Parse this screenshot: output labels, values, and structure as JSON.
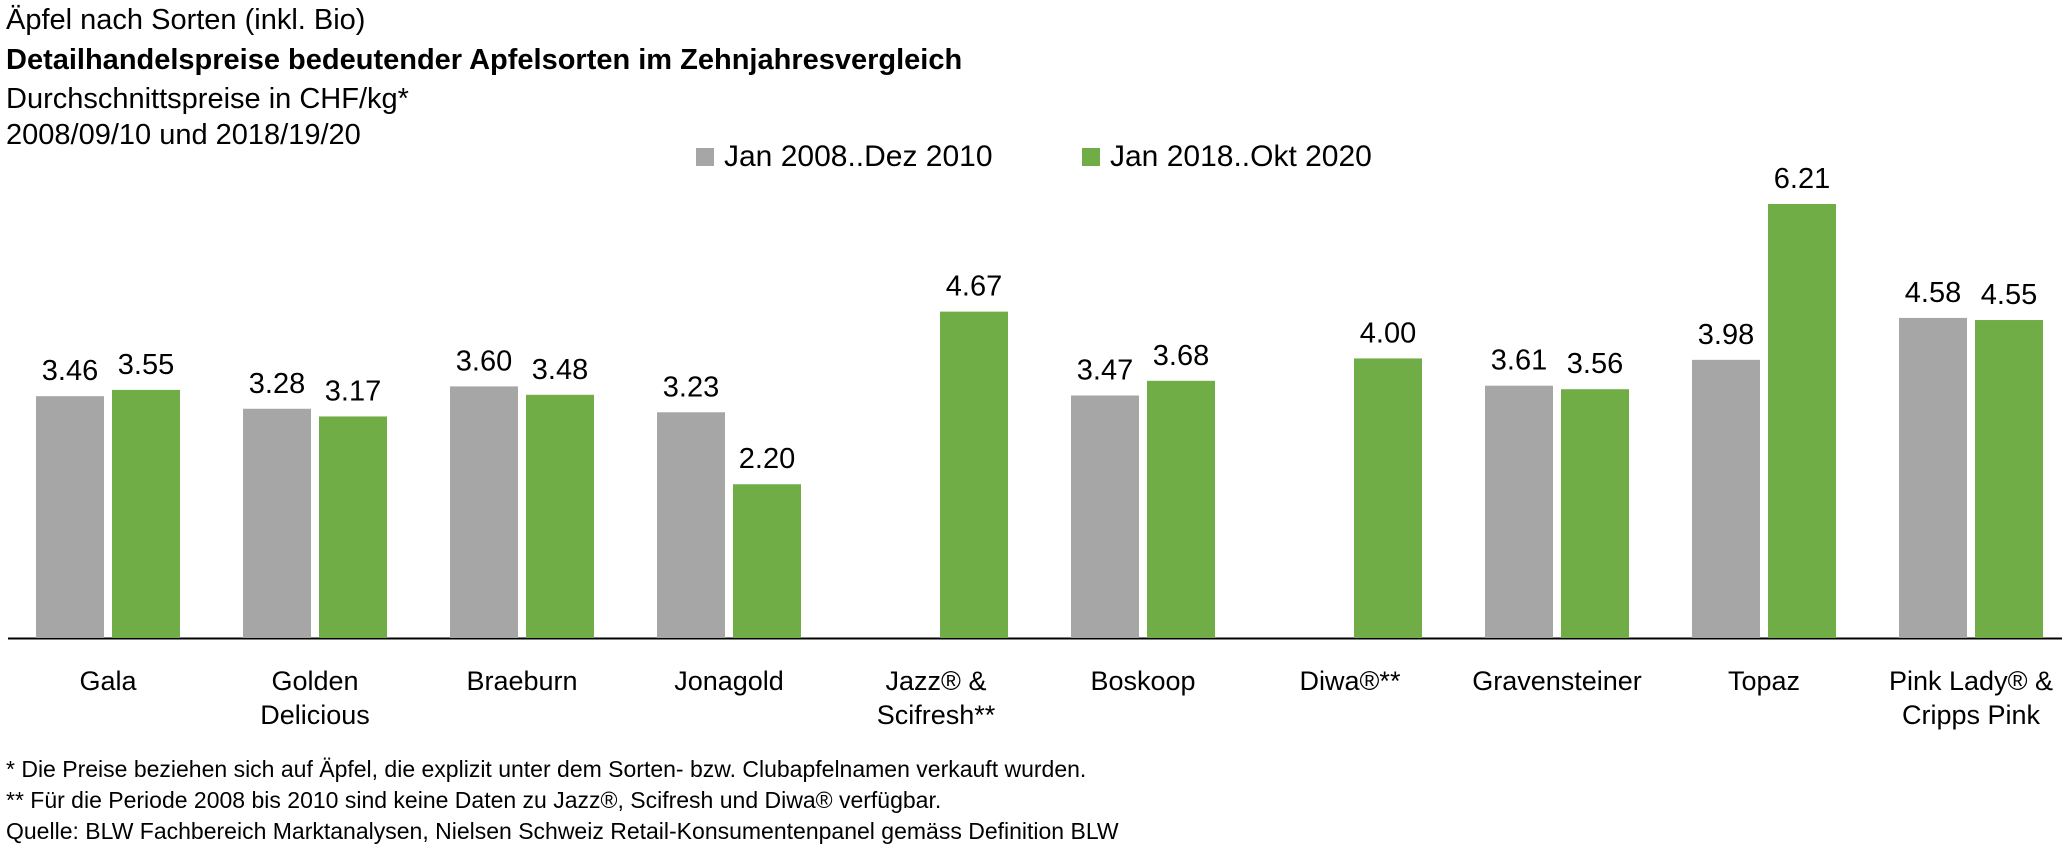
{
  "header": {
    "supertitle": "Äpfel nach Sorten (inkl. Bio)",
    "title": "Detailhandelspreise bedeutender Apfelsorten im Zehnjahresvergleich",
    "unit": "Durchschnittspreise  in CHF/kg*",
    "period": "2008/09/10 und 2018/19/20"
  },
  "legend": {
    "series1": "Jan 2008..Dez 2010",
    "series2": "Jan 2018..Okt 2020"
  },
  "colors": {
    "series1": "#A6A6A6",
    "series2": "#70AD47",
    "axis": "#000000"
  },
  "chart_data": {
    "type": "bar",
    "title": "Detailhandelspreise bedeutender Apfelsorten im Zehnjahresvergleich",
    "ylabel": "CHF/kg",
    "ylim": [
      0,
      6.5
    ],
    "categories": [
      "Gala",
      "Golden\nDelicious",
      "Braeburn",
      "Jonagold",
      "Jazz® &\nScifresh**",
      "Boskoop",
      "Diwa®**",
      "Gravensteiner",
      "Topaz",
      "Pink Lady® &\nCripps Pink"
    ],
    "series": [
      {
        "name": "Jan 2008..Dez 2010",
        "values": [
          3.46,
          3.28,
          3.6,
          3.23,
          null,
          3.47,
          null,
          3.61,
          3.98,
          4.58
        ],
        "labels": [
          "3.46",
          "3.28",
          "3.60",
          "3.23",
          "",
          "3.47",
          "",
          "3.61",
          "3.98",
          "4.58"
        ]
      },
      {
        "name": "Jan 2018..Okt 2020",
        "values": [
          3.55,
          3.17,
          3.48,
          2.2,
          4.67,
          3.68,
          4.0,
          3.56,
          6.21,
          4.55
        ],
        "labels": [
          "3.55",
          "3.17",
          "3.48",
          "2.20",
          "4.67",
          "3.68",
          "4.00",
          "3.56",
          "6.21",
          "4.55"
        ]
      }
    ]
  },
  "footnotes": {
    "note1": "* Die Preise beziehen sich auf Äpfel, die explizit unter dem Sorten- bzw. Clubapfelnamen verkauft wurden.",
    "note2": "** Für die Periode 2008 bis 2010 sind keine Daten zu Jazz®, Scifresh und Diwa® verfügbar.",
    "source": "Quelle: BLW Fachbereich Marktanalysen, Nielsen Schweiz Retail-Konsumentenpanel gemäss Definition BLW"
  }
}
